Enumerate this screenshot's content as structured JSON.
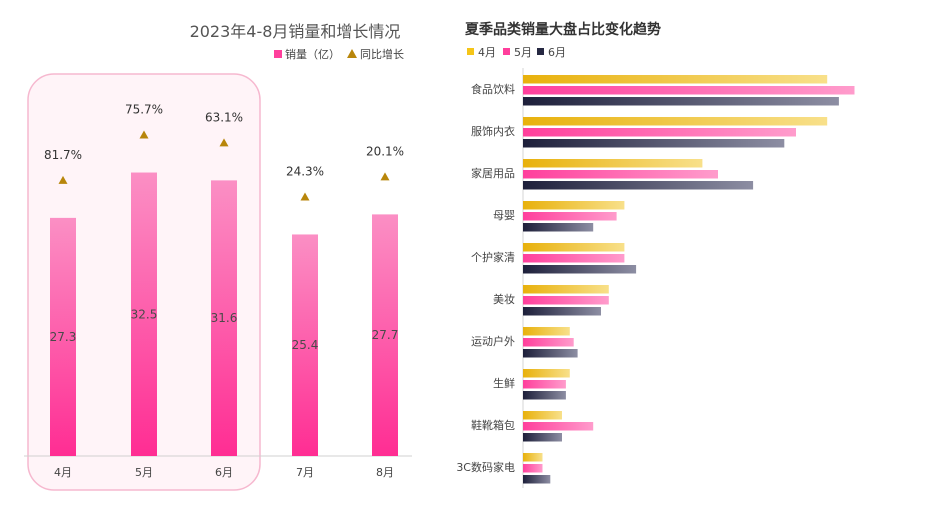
{
  "chart_data": [
    {
      "type": "bar",
      "title": "2023年4-8月销量和增长情况",
      "categories": [
        "4月",
        "5月",
        "6月",
        "7月",
        "8月"
      ],
      "series": [
        {
          "name": "销量（亿）",
          "values": [
            27.3,
            32.5,
            31.6,
            25.4,
            27.7
          ]
        },
        {
          "name": "同比增长",
          "values": [
            "81.7%",
            "75.7%",
            "63.1%",
            "24.3%",
            "20.1%"
          ],
          "marker": "triangle"
        }
      ],
      "highlight_categories": [
        "4月",
        "5月",
        "6月"
      ],
      "ylim": [
        0,
        36
      ],
      "grid": false,
      "legend": "top-right",
      "colors": {
        "bar_top": "#fb8fc4",
        "bar_bottom": "#ff2d93",
        "marker": "#b8860b",
        "highlight_border": "#f6b8cf",
        "highlight_fill": "#fff4f8"
      }
    },
    {
      "type": "bar",
      "orientation": "horizontal",
      "title": "夏季品类销量大盘占比变化趋势",
      "categories": [
        "食品饮料",
        "服饰内衣",
        "家居用品",
        "母婴",
        "个护家清",
        "美妆",
        "运动户外",
        "生鲜",
        "鞋靴箱包",
        "3C数码家电"
      ],
      "series": [
        {
          "name": "4月",
          "values": [
            0.78,
            0.78,
            0.46,
            0.26,
            0.26,
            0.22,
            0.12,
            0.12,
            0.1,
            0.05
          ],
          "color": "#f5c518"
        },
        {
          "name": "5月",
          "values": [
            0.85,
            0.7,
            0.5,
            0.24,
            0.26,
            0.22,
            0.13,
            0.11,
            0.18,
            0.05
          ],
          "color": "#ff3f9c"
        },
        {
          "name": "6月",
          "values": [
            0.81,
            0.67,
            0.59,
            0.18,
            0.29,
            0.2,
            0.14,
            0.11,
            0.1,
            0.07
          ],
          "color": "#262842"
        }
      ],
      "xlim": [
        0,
        1
      ],
      "grid": false,
      "legend": "top-left"
    }
  ]
}
